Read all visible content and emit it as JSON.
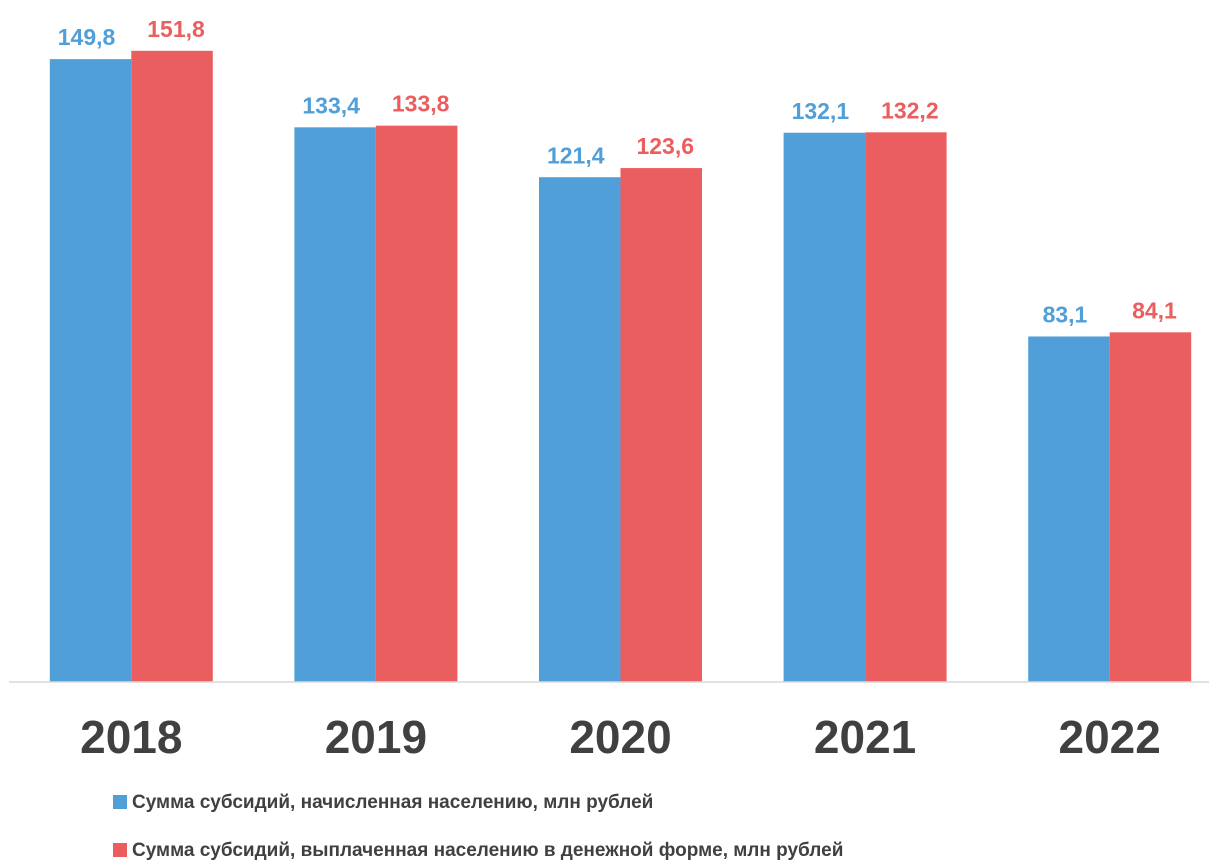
{
  "chart_data": {
    "type": "bar",
    "categories": [
      "2018",
      "2019",
      "2020",
      "2021",
      "2022"
    ],
    "series": [
      {
        "name": "Сумма субсидий, начисленная населению, млн рублей",
        "color": "#519fd8",
        "values": [
          149.8,
          133.4,
          121.4,
          132.1,
          83.1
        ],
        "value_labels": [
          "149,8",
          "133,4",
          "121,4",
          "132,1",
          "83,1"
        ]
      },
      {
        "name": "Сумма субсидий, выплаченная населению в денежной форме, млн рублей",
        "color": "#eb5e60",
        "values": [
          151.8,
          133.8,
          123.6,
          132.2,
          84.1
        ],
        "value_labels": [
          "151,8",
          "133,8",
          "123,6",
          "132,2",
          "84,1"
        ]
      }
    ],
    "ylim": [
      0,
      160
    ]
  }
}
